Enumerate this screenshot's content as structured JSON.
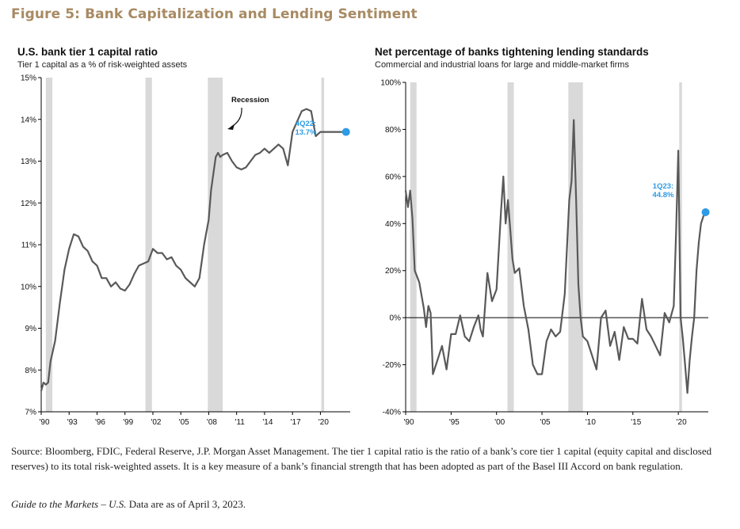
{
  "figure_title": "Figure 5: Bank Capitalization and Lending Sentiment",
  "footer": {
    "source": "Source: Bloomberg, FDIC, Federal Reserve, J.P. Morgan Asset Management. The tier 1 capital ratio is the ratio of a bank’s core tier 1 capital (equity capital and disclosed reserves) to its total risk-weighted assets. It is a key measure of a bank’s financial strength that has been adopted as part of the Basel III Accord on bank regulation.",
    "guide_title": "Guide to the Markets – U.S.",
    "guide_rest": " Data are as of April 3, 2023."
  },
  "colors": {
    "title": "#a88a63",
    "line": "#595959",
    "highlight": "#2e9be6",
    "recession": "#d9d9d9"
  },
  "chart_data": [
    {
      "type": "line",
      "title": "U.S. bank tier 1 capital ratio",
      "subtitle": "Tier 1 capital as a % of risk-weighted assets",
      "ylim": [
        7,
        15
      ],
      "xlim": [
        1990,
        2023.2
      ],
      "y_ticks": [
        7,
        8,
        9,
        10,
        11,
        12,
        13,
        14,
        15
      ],
      "y_tick_labels": [
        "7%",
        "8%",
        "9%",
        "10%",
        "11%",
        "12%",
        "13%",
        "14%",
        "15%"
      ],
      "x_ticks": [
        1990,
        1993,
        1996,
        1999,
        2002,
        2005,
        2008,
        2011,
        2014,
        2017,
        2020
      ],
      "x_tick_labels": [
        "'90",
        "'93",
        "'96",
        "'99",
        "'02",
        "'05",
        "'08",
        "'11",
        "'14",
        "'17",
        "'20"
      ],
      "recessions": [
        [
          1990.5,
          1991.2
        ],
        [
          2001.2,
          2001.9
        ],
        [
          2007.9,
          2009.5
        ],
        [
          2020.1,
          2020.4
        ]
      ],
      "recession_label": "Recession",
      "end_label": "4Q22:\n13.7%",
      "end_point": [
        2022.75,
        13.7
      ],
      "x": [
        1990,
        1990.25,
        1990.5,
        1990.75,
        1991,
        1991.5,
        1992,
        1992.5,
        1993,
        1993.5,
        1994,
        1994.5,
        1995,
        1995.5,
        1996,
        1996.5,
        1997,
        1997.5,
        1998,
        1998.5,
        1999,
        1999.5,
        2000,
        2000.5,
        2001,
        2001.5,
        2002,
        2002.5,
        2003,
        2003.5,
        2004,
        2004.5,
        2005,
        2005.5,
        2006,
        2006.5,
        2007,
        2007.5,
        2008,
        2008.25,
        2008.5,
        2008.75,
        2009,
        2009.25,
        2009.5,
        2010,
        2010.5,
        2011,
        2011.5,
        2012,
        2012.5,
        2013,
        2013.5,
        2014,
        2014.5,
        2015,
        2015.5,
        2016,
        2016.5,
        2017,
        2017.5,
        2018,
        2018.5,
        2019,
        2019.25,
        2019.5,
        2019.75,
        2020,
        2020.25,
        2020.5,
        2020.75,
        2021,
        2021.25,
        2021.5,
        2021.75,
        2022,
        2022.25,
        2022.5,
        2022.75
      ],
      "values": [
        7.5,
        7.7,
        7.65,
        7.7,
        8.2,
        8.7,
        9.6,
        10.4,
        10.9,
        11.25,
        11.2,
        10.95,
        10.85,
        10.6,
        10.5,
        10.2,
        10.2,
        10.0,
        10.1,
        9.95,
        9.9,
        10.05,
        10.3,
        10.5,
        10.55,
        10.6,
        10.9,
        10.8,
        10.8,
        10.65,
        10.7,
        10.5,
        10.4,
        10.2,
        10.1,
        10.0,
        10.2,
        11.0,
        11.6,
        12.3,
        12.7,
        13.1,
        13.2,
        13.1,
        13.15,
        13.2,
        13.0,
        12.85,
        12.8,
        12.85,
        13.0,
        13.15,
        13.2,
        13.3,
        13.2,
        13.3,
        13.4,
        13.3,
        12.9,
        13.7,
        13.95,
        14.2,
        14.25,
        14.2,
        13.9,
        13.6,
        13.65,
        13.7,
        13.7,
        13.7,
        13.7,
        13.7,
        13.7,
        13.7,
        13.7,
        13.7,
        13.7,
        13.7,
        13.7
      ]
    },
    {
      "type": "line",
      "title": "Net percentage of banks tightening lending standards",
      "subtitle": "Commercial and industrial loans for large and middle-market firms",
      "ylim": [
        -40,
        100
      ],
      "xlim": [
        1990,
        2023.3
      ],
      "y_ticks": [
        -40,
        -20,
        0,
        20,
        40,
        60,
        80,
        100
      ],
      "y_tick_labels": [
        "-40%",
        "-20%",
        "0%",
        "20%",
        "40%",
        "60%",
        "80%",
        "100%"
      ],
      "x_ticks": [
        1990,
        1995,
        2000,
        2005,
        2010,
        2015,
        2020
      ],
      "x_tick_labels": [
        "'90",
        "'95",
        "'00",
        "'05",
        "'10",
        "'15",
        "'20"
      ],
      "recessions": [
        [
          1990.5,
          1991.2
        ],
        [
          2001.2,
          2001.9
        ],
        [
          2007.9,
          2009.5
        ],
        [
          2020.1,
          2020.4
        ]
      ],
      "end_label": "1Q23:\n44.8%",
      "end_point": [
        2023.0,
        44.8
      ],
      "x": [
        1990,
        1990.25,
        1990.5,
        1990.75,
        1991,
        1991.5,
        1992,
        1992.25,
        1992.5,
        1992.75,
        1993,
        1993.5,
        1994,
        1994.5,
        1995,
        1995.5,
        1996,
        1996.5,
        1997,
        1997.5,
        1998,
        1998.25,
        1998.5,
        1999,
        1999.5,
        2000,
        2000.5,
        2000.75,
        2001,
        2001.25,
        2001.5,
        2001.75,
        2002,
        2002.5,
        2003,
        2003.5,
        2004,
        2004.5,
        2005,
        2005.5,
        2006,
        2006.5,
        2007,
        2007.5,
        2008,
        2008.25,
        2008.5,
        2008.75,
        2009,
        2009.25,
        2009.5,
        2010,
        2010.5,
        2011,
        2011.5,
        2012,
        2012.5,
        2013,
        2013.5,
        2014,
        2014.5,
        2015,
        2015.5,
        2016,
        2016.5,
        2017,
        2017.5,
        2018,
        2018.5,
        2019,
        2019.5,
        2019.75,
        2020,
        2020.25,
        2020.5,
        2020.75,
        2021,
        2021.25,
        2021.5,
        2021.75,
        2022,
        2022.25,
        2022.5,
        2022.75,
        2023
      ],
      "values": [
        54,
        47,
        54,
        42,
        20,
        15,
        4,
        -4,
        5,
        2,
        -24,
        -18,
        -12,
        -22,
        -7,
        -7,
        1,
        -8,
        -10,
        -4,
        1,
        -5,
        -8,
        19,
        7,
        12,
        46,
        60,
        40,
        50,
        38,
        25,
        19,
        21,
        5,
        -5,
        -20,
        -24,
        -24,
        -10,
        -5,
        -8,
        -6,
        10,
        50,
        58,
        84,
        51,
        14,
        0,
        -8,
        -10,
        -16,
        -22,
        0,
        3,
        -12,
        -6,
        -18,
        -4,
        -9,
        -9,
        -11,
        8,
        -5,
        -8,
        -12,
        -16,
        2,
        -2,
        5,
        36,
        71,
        0,
        -9,
        -20,
        -32,
        -18,
        -8,
        0,
        20,
        32,
        40,
        43,
        44.8
      ]
    }
  ]
}
